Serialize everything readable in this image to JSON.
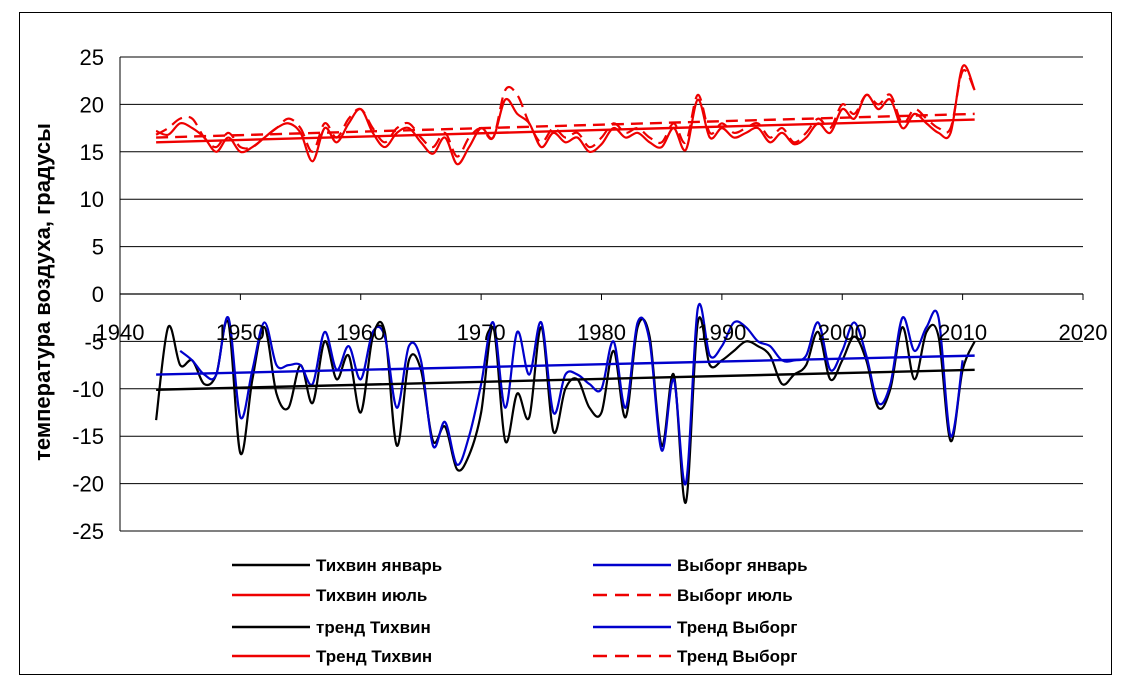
{
  "chart_data": {
    "type": "line",
    "title": "",
    "xlabel": "",
    "ylabel": "температура воздуха, градусы",
    "xlim": [
      1940,
      2020
    ],
    "ylim": [
      -25,
      25
    ],
    "x_ticks": [
      "1940",
      "1950",
      "1960",
      "1970",
      "1980",
      "1990",
      "2000",
      "2010",
      "2020"
    ],
    "y_ticks": [
      "25",
      "20",
      "15",
      "10",
      "5",
      "0",
      "-5",
      "-10",
      "-15",
      "-20",
      "-25"
    ],
    "grid": "horizontal",
    "legend_position": "bottom",
    "years": [
      1943,
      1944,
      1945,
      1946,
      1947,
      1948,
      1949,
      1950,
      1951,
      1952,
      1953,
      1954,
      1955,
      1956,
      1957,
      1958,
      1959,
      1960,
      1961,
      1962,
      1963,
      1964,
      1965,
      1966,
      1967,
      1968,
      1969,
      1970,
      1971,
      1972,
      1973,
      1974,
      1975,
      1976,
      1977,
      1978,
      1979,
      1980,
      1981,
      1982,
      1983,
      1984,
      1985,
      1986,
      1987,
      1988,
      1989,
      1990,
      1991,
      1992,
      1993,
      1994,
      1995,
      1996,
      1997,
      1998,
      1999,
      2000,
      2001,
      2002,
      2003,
      2004,
      2005,
      2006,
      2007,
      2008,
      2009,
      2010,
      2011
    ],
    "series": [
      {
        "name": "Тихвин январь",
        "color": "#000000",
        "dash": "solid",
        "values": [
          -13.3,
          -3.5,
          -7.5,
          -7.0,
          -9.5,
          -8.5,
          -3.0,
          -16.8,
          -9.0,
          -3.5,
          -10.5,
          -12.0,
          -7.5,
          -11.5,
          -5.0,
          -9.0,
          -6.5,
          -12.5,
          -4.5,
          -4.0,
          -16.0,
          -7.0,
          -8.0,
          -15.5,
          -14.0,
          -18.5,
          -17.0,
          -12.5,
          -3.5,
          -15.5,
          -10.5,
          -13.0,
          -3.5,
          -14.5,
          -10.0,
          -9.0,
          -12.0,
          -12.5,
          -6.0,
          -13.0,
          -3.5,
          -4.5,
          -16.0,
          -8.5,
          -22.0,
          -3.0,
          -7.5,
          -7.0,
          -6.0,
          -5.0,
          -5.5,
          -6.5,
          -9.5,
          -8.5,
          -7.5,
          -4.0,
          -9.0,
          -7.0,
          -4.5,
          -7.0,
          -12.0,
          -10.0,
          -3.5,
          -9.0,
          -4.0,
          -4.5,
          -15.5,
          -8.0,
          -5.0
        ]
      },
      {
        "name": "Выборг январь",
        "color": "#0000cc",
        "dash": "solid",
        "values": [
          null,
          null,
          -6.0,
          -7.0,
          -8.5,
          -8.5,
          -2.5,
          -13.0,
          -8.0,
          -3.0,
          -7.5,
          -7.5,
          -7.5,
          -9.5,
          -4.0,
          -8.0,
          -5.5,
          -9.0,
          -4.0,
          -4.5,
          -12.0,
          -5.5,
          -7.0,
          -16.0,
          -13.5,
          -18.0,
          -15.0,
          -9.5,
          -3.0,
          -12.0,
          -4.0,
          -8.5,
          -3.0,
          -12.5,
          -8.5,
          -8.5,
          -9.5,
          -10.0,
          -5.0,
          -12.0,
          -3.0,
          -5.0,
          -16.5,
          -9.0,
          -20.0,
          -1.5,
          -6.5,
          -5.5,
          -3.0,
          -3.5,
          -5.0,
          -5.5,
          -7.0,
          -7.0,
          -6.5,
          -3.0,
          -8.0,
          -6.0,
          -3.0,
          -6.5,
          -11.5,
          -9.5,
          -2.5,
          -6.0,
          -3.5,
          -2.5,
          -15.0,
          -7.0,
          null
        ]
      },
      {
        "name": "Тихвин июль",
        "color": "#ee0000",
        "dash": "solid",
        "values": [
          17.2,
          16.8,
          18.0,
          17.5,
          16.5,
          15.0,
          16.5,
          15.0,
          15.5,
          16.5,
          17.5,
          18.0,
          17.0,
          14.0,
          17.5,
          16.0,
          18.0,
          19.5,
          17.0,
          15.5,
          17.0,
          17.5,
          16.0,
          14.8,
          16.5,
          13.7,
          15.5,
          17.5,
          16.5,
          20.5,
          19.0,
          18.0,
          15.5,
          17.0,
          16.0,
          16.5,
          15.0,
          15.8,
          17.5,
          16.5,
          17.0,
          16.0,
          15.5,
          17.5,
          15.2,
          20.5,
          16.5,
          17.5,
          16.5,
          17.0,
          17.5,
          16.0,
          17.0,
          15.8,
          16.5,
          18.0,
          17.0,
          19.5,
          18.5,
          21.0,
          19.5,
          20.5,
          17.5,
          19.0,
          18.0,
          17.0,
          17.0,
          24.0,
          21.5
        ]
      },
      {
        "name": "Выборг  июль",
        "color": "#ee0000",
        "dash": "dash",
        "values": [
          16.8,
          17.5,
          18.5,
          18.5,
          16.5,
          15.5,
          17.0,
          15.5,
          15.5,
          16.5,
          17.5,
          18.5,
          17.5,
          15.0,
          18.0,
          16.5,
          18.5,
          19.5,
          17.5,
          16.0,
          17.5,
          18.0,
          16.5,
          15.5,
          17.0,
          14.5,
          16.5,
          17.5,
          16.5,
          21.5,
          21.0,
          18.0,
          16.0,
          17.5,
          16.5,
          17.0,
          15.5,
          16.5,
          18.0,
          17.0,
          17.5,
          16.5,
          16.0,
          18.0,
          16.0,
          21.0,
          17.0,
          18.0,
          17.0,
          17.5,
          18.0,
          16.5,
          17.5,
          16.0,
          17.0,
          18.5,
          17.5,
          20.0,
          19.0,
          21.0,
          20.0,
          21.0,
          18.0,
          19.5,
          18.5,
          17.5,
          17.5,
          23.5,
          21.5
        ]
      },
      {
        "name": "тренд Тихвин",
        "color": "#000000",
        "dash": "solid",
        "trend_x": [
          1943,
          2011
        ],
        "trend_y": [
          -10.1,
          -8.0
        ]
      },
      {
        "name": "Тренд Выборг",
        "color": "#0000cc",
        "dash": "solid",
        "trend_x": [
          1943,
          2011
        ],
        "trend_y": [
          -8.5,
          -6.5
        ]
      },
      {
        "name": "Тренд Тихвин",
        "color": "#ee0000",
        "dash": "solid",
        "trend_x": [
          1943,
          2011
        ],
        "trend_y": [
          16.0,
          18.4
        ]
      },
      {
        "name": "Тренд Выборг",
        "color": "#ee0000",
        "dash": "dash",
        "trend_x": [
          1943,
          2011
        ],
        "trend_y": [
          16.5,
          19.0
        ]
      }
    ],
    "legend": [
      {
        "label": "Тихвин январь",
        "color": "#000000",
        "dash": "solid"
      },
      {
        "label": "Выборг январь",
        "color": "#0000cc",
        "dash": "solid"
      },
      {
        "label": "Тихвин июль",
        "color": "#ee0000",
        "dash": "solid"
      },
      {
        "label": "Выборг  июль",
        "color": "#ee0000",
        "dash": "dash"
      },
      {
        "label": "тренд Тихвин",
        "color": "#000000",
        "dash": "solid"
      },
      {
        "label": "Тренд Выборг",
        "color": "#0000cc",
        "dash": "solid"
      },
      {
        "label": "Тренд Тихвин",
        "color": "#ee0000",
        "dash": "solid"
      },
      {
        "label": "Тренд Выборг",
        "color": "#ee0000",
        "dash": "dash"
      }
    ]
  }
}
